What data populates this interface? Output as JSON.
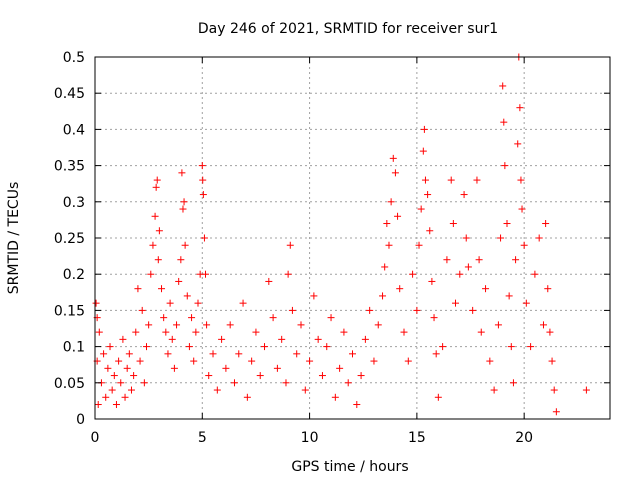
{
  "chart_data": {
    "type": "scatter",
    "title": "Day 246 of 2021, SRMTID for receiver sur1",
    "xlabel": "GPS time / hours",
    "ylabel": "SRMTID / TECUs",
    "xlim": [
      0,
      24
    ],
    "ylim": [
      0,
      0.5
    ],
    "xticks": [
      0,
      5,
      10,
      15,
      20
    ],
    "xtick_labels": [
      "0",
      "5",
      "10",
      "15",
      "20"
    ],
    "yticks": [
      0,
      0.05,
      0.1,
      0.15,
      0.2,
      0.25,
      0.3,
      0.35,
      0.4,
      0.45,
      0.5
    ],
    "ytick_labels": [
      "0",
      "0.05",
      "0.1",
      "0.15",
      "0.2",
      "0.25",
      "0.3",
      "0.35",
      "0.4",
      "0.45",
      "0.5"
    ],
    "grid": true,
    "marker": "+",
    "color": "#ff0000",
    "series": [
      {
        "name": "sur1",
        "points": [
          [
            0.05,
            0.16
          ],
          [
            0.1,
            0.14
          ],
          [
            0.2,
            0.12
          ],
          [
            0.1,
            0.08
          ],
          [
            0.15,
            0.02
          ],
          [
            0.3,
            0.05
          ],
          [
            0.4,
            0.09
          ],
          [
            0.5,
            0.03
          ],
          [
            0.6,
            0.07
          ],
          [
            0.7,
            0.1
          ],
          [
            0.8,
            0.04
          ],
          [
            0.9,
            0.06
          ],
          [
            1.0,
            0.02
          ],
          [
            1.1,
            0.08
          ],
          [
            1.2,
            0.05
          ],
          [
            1.3,
            0.11
          ],
          [
            1.4,
            0.03
          ],
          [
            1.5,
            0.07
          ],
          [
            1.6,
            0.09
          ],
          [
            1.7,
            0.04
          ],
          [
            1.8,
            0.06
          ],
          [
            1.9,
            0.12
          ],
          [
            2.0,
            0.18
          ],
          [
            2.1,
            0.08
          ],
          [
            2.2,
            0.15
          ],
          [
            2.3,
            0.05
          ],
          [
            2.4,
            0.1
          ],
          [
            2.5,
            0.13
          ],
          [
            2.6,
            0.2
          ],
          [
            2.7,
            0.24
          ],
          [
            2.8,
            0.28
          ],
          [
            2.85,
            0.32
          ],
          [
            2.9,
            0.33
          ],
          [
            2.95,
            0.22
          ],
          [
            3.0,
            0.26
          ],
          [
            3.1,
            0.18
          ],
          [
            3.2,
            0.14
          ],
          [
            3.3,
            0.12
          ],
          [
            3.4,
            0.09
          ],
          [
            3.5,
            0.16
          ],
          [
            3.6,
            0.11
          ],
          [
            3.7,
            0.07
          ],
          [
            3.8,
            0.13
          ],
          [
            3.9,
            0.19
          ],
          [
            4.0,
            0.22
          ],
          [
            4.05,
            0.34
          ],
          [
            4.1,
            0.29
          ],
          [
            4.15,
            0.3
          ],
          [
            4.2,
            0.24
          ],
          [
            4.3,
            0.17
          ],
          [
            4.4,
            0.1
          ],
          [
            4.5,
            0.14
          ],
          [
            4.6,
            0.08
          ],
          [
            4.7,
            0.12
          ],
          [
            4.8,
            0.16
          ],
          [
            4.9,
            0.2
          ],
          [
            5.0,
            0.35
          ],
          [
            5.02,
            0.33
          ],
          [
            5.05,
            0.31
          ],
          [
            5.1,
            0.25
          ],
          [
            5.15,
            0.2
          ],
          [
            5.2,
            0.13
          ],
          [
            5.3,
            0.06
          ],
          [
            5.5,
            0.09
          ],
          [
            5.7,
            0.04
          ],
          [
            5.9,
            0.11
          ],
          [
            6.1,
            0.07
          ],
          [
            6.3,
            0.13
          ],
          [
            6.5,
            0.05
          ],
          [
            6.7,
            0.09
          ],
          [
            6.9,
            0.16
          ],
          [
            7.1,
            0.03
          ],
          [
            7.3,
            0.08
          ],
          [
            7.5,
            0.12
          ],
          [
            7.7,
            0.06
          ],
          [
            7.9,
            0.1
          ],
          [
            8.1,
            0.19
          ],
          [
            8.3,
            0.14
          ],
          [
            8.5,
            0.07
          ],
          [
            8.7,
            0.11
          ],
          [
            8.9,
            0.05
          ],
          [
            9.0,
            0.2
          ],
          [
            9.1,
            0.24
          ],
          [
            9.2,
            0.15
          ],
          [
            9.4,
            0.09
          ],
          [
            9.6,
            0.13
          ],
          [
            9.8,
            0.04
          ],
          [
            10.0,
            0.08
          ],
          [
            10.2,
            0.17
          ],
          [
            10.4,
            0.11
          ],
          [
            10.6,
            0.06
          ],
          [
            10.8,
            0.1
          ],
          [
            11.0,
            0.14
          ],
          [
            11.2,
            0.03
          ],
          [
            11.4,
            0.07
          ],
          [
            11.6,
            0.12
          ],
          [
            11.8,
            0.05
          ],
          [
            12.0,
            0.09
          ],
          [
            12.2,
            0.02
          ],
          [
            12.4,
            0.06
          ],
          [
            12.6,
            0.11
          ],
          [
            12.8,
            0.15
          ],
          [
            13.0,
            0.08
          ],
          [
            13.2,
            0.13
          ],
          [
            13.4,
            0.17
          ],
          [
            13.5,
            0.21
          ],
          [
            13.6,
            0.27
          ],
          [
            13.7,
            0.24
          ],
          [
            13.8,
            0.3
          ],
          [
            13.9,
            0.36
          ],
          [
            14.0,
            0.34
          ],
          [
            14.1,
            0.28
          ],
          [
            14.2,
            0.18
          ],
          [
            14.4,
            0.12
          ],
          [
            14.6,
            0.08
          ],
          [
            14.8,
            0.2
          ],
          [
            15.0,
            0.15
          ],
          [
            15.1,
            0.24
          ],
          [
            15.2,
            0.29
          ],
          [
            15.3,
            0.37
          ],
          [
            15.35,
            0.4
          ],
          [
            15.4,
            0.33
          ],
          [
            15.5,
            0.31
          ],
          [
            15.6,
            0.26
          ],
          [
            15.7,
            0.19
          ],
          [
            15.8,
            0.14
          ],
          [
            15.9,
            0.09
          ],
          [
            16.0,
            0.03
          ],
          [
            16.2,
            0.1
          ],
          [
            16.4,
            0.22
          ],
          [
            16.6,
            0.33
          ],
          [
            16.7,
            0.27
          ],
          [
            16.8,
            0.16
          ],
          [
            17.0,
            0.2
          ],
          [
            17.2,
            0.31
          ],
          [
            17.3,
            0.25
          ],
          [
            17.4,
            0.21
          ],
          [
            17.6,
            0.15
          ],
          [
            17.8,
            0.33
          ],
          [
            17.9,
            0.22
          ],
          [
            18.0,
            0.12
          ],
          [
            18.2,
            0.18
          ],
          [
            18.4,
            0.08
          ],
          [
            18.6,
            0.04
          ],
          [
            18.8,
            0.13
          ],
          [
            18.9,
            0.25
          ],
          [
            19.0,
            0.46
          ],
          [
            19.05,
            0.41
          ],
          [
            19.1,
            0.35
          ],
          [
            19.2,
            0.27
          ],
          [
            19.3,
            0.17
          ],
          [
            19.4,
            0.1
          ],
          [
            19.5,
            0.05
          ],
          [
            19.6,
            0.22
          ],
          [
            19.7,
            0.38
          ],
          [
            19.75,
            0.5
          ],
          [
            19.8,
            0.43
          ],
          [
            19.85,
            0.33
          ],
          [
            19.9,
            0.29
          ],
          [
            20.0,
            0.24
          ],
          [
            20.1,
            0.16
          ],
          [
            20.3,
            0.1
          ],
          [
            20.5,
            0.2
          ],
          [
            20.7,
            0.25
          ],
          [
            20.9,
            0.13
          ],
          [
            21.0,
            0.27
          ],
          [
            21.1,
            0.18
          ],
          [
            21.2,
            0.12
          ],
          [
            21.3,
            0.08
          ],
          [
            21.4,
            0.04
          ],
          [
            21.5,
            0.01
          ],
          [
            22.9,
            0.04
          ]
        ]
      }
    ]
  }
}
